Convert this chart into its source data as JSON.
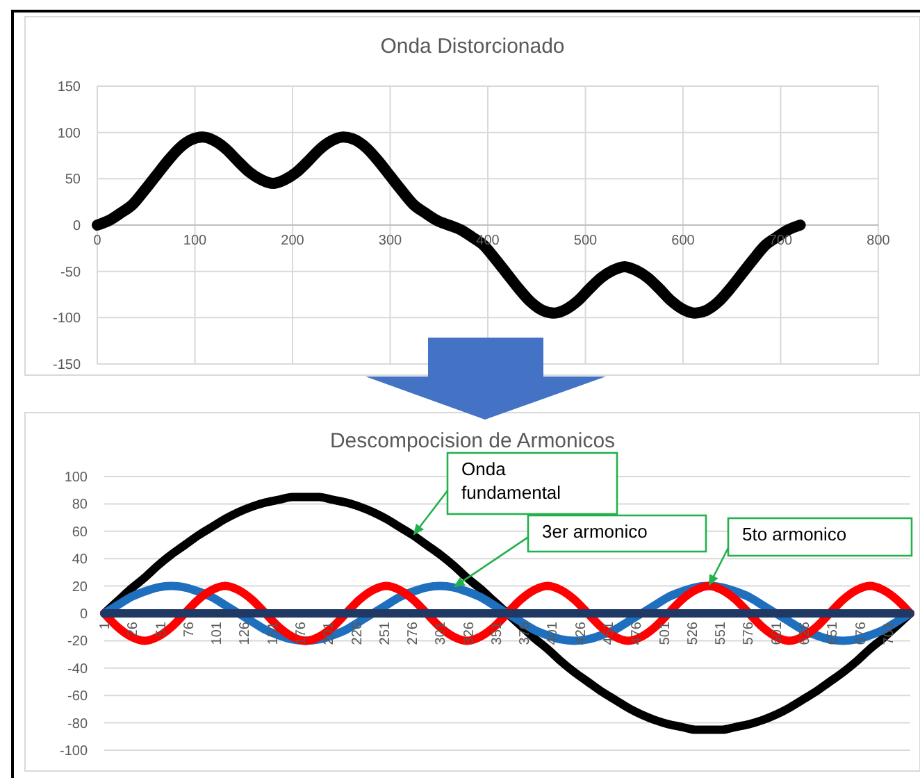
{
  "chart_data": [
    {
      "type": "line",
      "title": "Onda Distorcionado",
      "x": [
        0,
        12,
        24,
        36,
        48,
        60,
        72,
        84,
        96,
        108,
        120,
        132,
        144,
        156,
        168,
        180,
        192,
        204,
        216,
        228,
        240,
        252,
        264,
        276,
        288,
        300,
        312,
        324,
        336,
        348,
        360,
        372,
        384,
        396,
        408,
        420,
        432,
        444,
        456,
        468,
        480,
        492,
        504,
        516,
        528,
        540,
        552,
        564,
        576,
        588,
        600,
        612,
        624,
        636,
        648,
        660,
        672,
        684,
        696,
        708,
        720
      ],
      "series": [
        {
          "color": "#000000",
          "values": [
            0,
            5,
            13,
            22,
            37,
            53,
            69,
            83,
            92,
            95,
            91,
            82,
            69,
            57,
            49,
            45,
            49,
            57,
            69,
            82,
            91,
            95,
            92,
            83,
            69,
            53,
            37,
            22,
            13,
            5,
            0,
            -5,
            -13,
            -22,
            -37,
            -53,
            -69,
            -83,
            -92,
            -95,
            -91,
            -82,
            -69,
            -57,
            -49,
            -45,
            -49,
            -57,
            -69,
            -82,
            -91,
            -95,
            -92,
            -83,
            -69,
            -53,
            -37,
            -22,
            -13,
            -5,
            0
          ]
        }
      ],
      "xlim": [
        0,
        800
      ],
      "xticks": [
        0,
        100,
        200,
        300,
        400,
        500,
        600,
        700,
        800
      ],
      "ylim": [
        -150,
        150
      ],
      "yticks": [
        -150,
        -100,
        -50,
        0,
        50,
        100,
        150
      ],
      "grid": true
    },
    {
      "type": "line",
      "title": "Descompocision de Armonicos",
      "x": [
        1,
        13,
        25,
        37,
        49,
        61,
        73,
        85,
        97,
        109,
        121,
        133,
        145,
        157,
        169,
        181,
        193,
        205,
        217,
        229,
        241,
        253,
        265,
        277,
        289,
        301,
        313,
        325,
        337,
        349,
        361,
        373,
        385,
        397,
        409,
        421,
        433,
        445,
        457,
        469,
        481,
        493,
        505,
        517,
        529,
        541,
        553,
        565,
        577,
        589,
        601,
        613,
        625,
        637,
        649,
        661,
        673,
        685,
        697,
        709,
        721
      ],
      "series": [
        {
          "name": "Onda fundamental",
          "color": "#000000",
          "values": [
            0,
            9,
            18,
            26,
            35,
            43,
            50,
            57,
            63,
            69,
            74,
            78,
            81,
            83,
            85,
            85,
            85,
            83,
            81,
            78,
            74,
            69,
            63,
            57,
            50,
            43,
            35,
            26,
            18,
            9,
            0,
            -9,
            -18,
            -26,
            -35,
            -43,
            -50,
            -57,
            -63,
            -69,
            -74,
            -78,
            -81,
            -83,
            -85,
            -85,
            -85,
            -83,
            -81,
            -78,
            -74,
            -69,
            -63,
            -57,
            -50,
            -43,
            -35,
            -26,
            -18,
            -9,
            0
          ]
        },
        {
          "name": "3er armonico",
          "color": "#1f6fbf",
          "values": [
            0,
            6,
            12,
            16,
            19,
            20,
            19,
            16,
            12,
            6,
            0,
            -6,
            -12,
            -16,
            -19,
            -20,
            -19,
            -16,
            -12,
            -6,
            0,
            6,
            12,
            16,
            19,
            20,
            19,
            16,
            12,
            6,
            0,
            -6,
            -12,
            -16,
            -19,
            -20,
            -19,
            -16,
            -12,
            -6,
            0,
            6,
            12,
            16,
            19,
            20,
            19,
            16,
            12,
            6,
            0,
            -6,
            -12,
            -16,
            -19,
            -20,
            -19,
            -16,
            -12,
            -6,
            0
          ]
        },
        {
          "name": "5to armonico",
          "color": "#ff0000",
          "values": [
            0,
            -10,
            -17,
            -20,
            -17,
            -10,
            0,
            10,
            17,
            20,
            17,
            10,
            0,
            -10,
            -17,
            -20,
            -17,
            -10,
            0,
            10,
            17,
            20,
            17,
            10,
            0,
            -10,
            -17,
            -20,
            -17,
            -10,
            0,
            10,
            17,
            20,
            17,
            10,
            0,
            -10,
            -17,
            -20,
            -17,
            -10,
            0,
            10,
            17,
            20,
            17,
            10,
            0,
            -10,
            -17,
            -20,
            -17,
            -10,
            0,
            10,
            17,
            20,
            17,
            10,
            0
          ]
        },
        {
          "color": "#1f3864",
          "values": [
            0,
            0,
            0,
            0,
            0,
            0,
            0,
            0,
            0,
            0,
            0,
            0,
            0,
            0,
            0,
            0,
            0,
            0,
            0,
            0,
            0,
            0,
            0,
            0,
            0,
            0,
            0,
            0,
            0,
            0,
            0,
            0,
            0,
            0,
            0,
            0,
            0,
            0,
            0,
            0,
            0,
            0,
            0,
            0,
            0,
            0,
            0,
            0,
            0,
            0,
            0,
            0,
            0,
            0,
            0,
            0,
            0,
            0,
            0,
            0,
            0
          ]
        }
      ],
      "xlim": [
        1,
        721
      ],
      "xticks": [
        1,
        26,
        51,
        76,
        101,
        126,
        151,
        176,
        201,
        226,
        251,
        276,
        301,
        326,
        351,
        376,
        401,
        426,
        451,
        476,
        501,
        526,
        551,
        576,
        601,
        626,
        651,
        676,
        701
      ],
      "ylim": [
        -100,
        100
      ],
      "yticks": [
        -100,
        -80,
        -60,
        -40,
        -20,
        0,
        20,
        40,
        60,
        80,
        100
      ],
      "grid": "y"
    }
  ]
}
